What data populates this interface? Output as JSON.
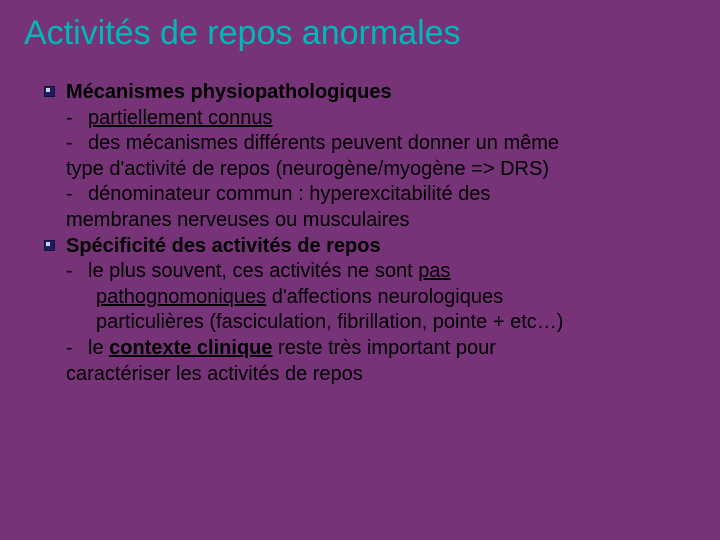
{
  "slide": {
    "title": "Activités de repos anormales",
    "background_color": "#773377",
    "title_color": "#00b8b8",
    "text_color": "#000000",
    "title_fontsize": 34,
    "body_fontsize": 20,
    "section1_heading": "Mécanismes physiopathologiques",
    "s1_l1_a": "partiellement connus",
    "s1_l2": "des mécanismes différents peuvent donner un même",
    "s1_l2b": "type d'activité de repos (neurogène/myogène => DRS)",
    "s1_l3": "dénominateur commun : hyperexcitabilité des",
    "s1_l3b": "membranes nerveuses ou musculaires",
    "section2_heading": "Spécificité des activités de repos",
    "s2_l1_a": "le plus souvent, ces activités ne sont ",
    "s2_l1_u1": "pas",
    "s2_l1b_u": "pathognomoniques",
    "s2_l1b_rest": " d'affections neurologiques",
    "s2_l1c": "particulières (fasciculation, fibrillation, pointe + etc…)",
    "s2_l2_a": "le ",
    "s2_l2_u": "contexte clinique",
    "s2_l2_b": " reste très important pour",
    "s2_l2c": "caractériser les activités de repos",
    "dash": "- "
  }
}
